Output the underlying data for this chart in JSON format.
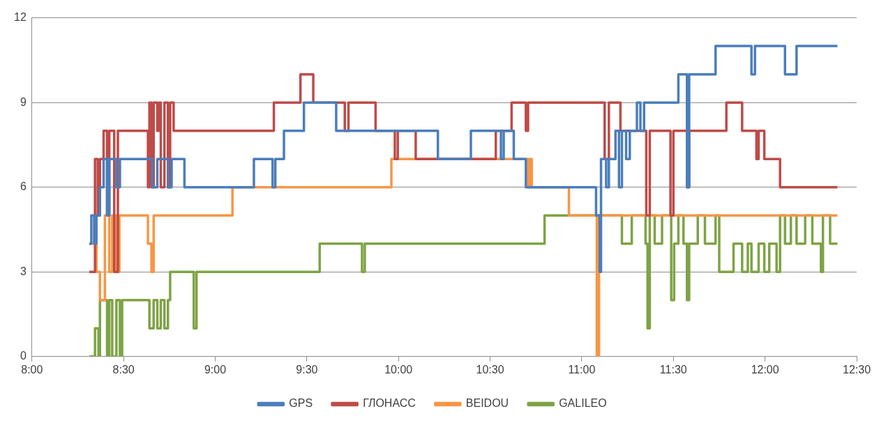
{
  "chart_data": {
    "type": "step",
    "xlim": [
      8,
      12.5
    ],
    "ylim": [
      0,
      12
    ],
    "yticks": [
      0,
      3,
      6,
      9,
      12
    ],
    "xticks": [
      {
        "value": 8,
        "label": "8:00"
      },
      {
        "value": 8.5,
        "label": "8:30"
      },
      {
        "value": 9,
        "label": "9:00"
      },
      {
        "value": 9.5,
        "label": "9:30"
      },
      {
        "value": 10,
        "label": "10:00"
      },
      {
        "value": 10.5,
        "label": "10:30"
      },
      {
        "value": 11,
        "label": "11:00"
      },
      {
        "value": 11.5,
        "label": "11:30"
      },
      {
        "value": 12,
        "label": "12:00"
      },
      {
        "value": 12.5,
        "label": "12:30"
      }
    ],
    "grid": "y",
    "legend": "bottom",
    "marker": "none",
    "line_style": "solid",
    "series": [
      {
        "name": "GPS",
        "color": "#4a7ebb",
        "x": [
          8.313,
          8.324,
          8.34,
          8.352,
          8.371,
          8.391,
          8.41,
          8.422,
          8.461,
          8.48,
          8.656,
          8.684,
          8.742,
          8.762,
          8.832,
          9.211,
          9.313,
          9.328,
          9.375,
          9.484,
          9.66,
          10.215,
          10.395,
          10.559,
          10.574,
          10.629,
          10.695,
          11.078,
          11.098,
          11.105,
          11.133,
          11.148,
          11.184,
          11.203,
          11.219,
          11.242,
          11.262,
          11.301,
          11.32,
          11.34,
          11.527,
          11.574,
          11.586,
          11.73,
          11.926,
          11.945,
          12.109,
          12.172,
          12.395
        ],
        "values": [
          4,
          5,
          4,
          5,
          6,
          7,
          5,
          7,
          6,
          7,
          6,
          7,
          6,
          7,
          6,
          7,
          6,
          7,
          8,
          9,
          8,
          7,
          8,
          7,
          8,
          7,
          6,
          5,
          3,
          7,
          6,
          7,
          8,
          6,
          8,
          7,
          8,
          9,
          8,
          9,
          10,
          6,
          10,
          11,
          10,
          11,
          10,
          11,
          11
        ]
      },
      {
        "name": "ГЛОНАСС",
        "color": "#be4b48",
        "x": [
          8.313,
          8.344,
          8.359,
          8.371,
          8.391,
          8.41,
          8.422,
          8.449,
          8.469,
          8.633,
          8.641,
          8.652,
          8.664,
          8.684,
          8.695,
          8.703,
          8.723,
          8.742,
          8.754,
          8.773,
          9.32,
          9.465,
          9.535,
          9.707,
          9.727,
          9.875,
          9.98,
          9.996,
          10.094,
          10.531,
          10.617,
          10.695,
          10.707,
          11.125,
          11.148,
          11.211,
          11.352,
          11.371,
          11.484,
          11.5,
          11.574,
          11.586,
          11.789,
          11.875,
          11.953,
          11.965,
          11.996,
          12.082,
          12.395
        ],
        "values": [
          3,
          7,
          5,
          7,
          8,
          5,
          8,
          3,
          8,
          6,
          9,
          6,
          9,
          8,
          9,
          6,
          9,
          6,
          9,
          8,
          9,
          10,
          9,
          8,
          9,
          8,
          7,
          8,
          7,
          8,
          9,
          8,
          9,
          7,
          9,
          8,
          5,
          8,
          5,
          8,
          6,
          8,
          9,
          8,
          7,
          8,
          7,
          6,
          6
        ]
      },
      {
        "name": "BEIDOU",
        "color": "#f79646",
        "x": [
          8.313,
          8.34,
          8.352,
          8.371,
          8.398,
          8.422,
          8.438,
          8.461,
          8.477,
          8.633,
          8.652,
          8.664,
          9.094,
          9.961,
          10.707,
          10.715,
          10.727,
          10.93,
          11.082,
          11.094,
          12.395
        ],
        "values": [
          4,
          5,
          3,
          2,
          5,
          3,
          5,
          3,
          5,
          4,
          3,
          5,
          6,
          7,
          6,
          7,
          6,
          5,
          0,
          5,
          5
        ]
      },
      {
        "name": "GALILEO",
        "color": "#7ea345",
        "x": [
          8.313,
          8.344,
          8.363,
          8.371,
          8.41,
          8.422,
          8.438,
          8.461,
          8.48,
          8.492,
          8.641,
          8.664,
          8.684,
          8.703,
          8.723,
          8.742,
          8.754,
          8.883,
          8.898,
          9.57,
          9.801,
          9.816,
          10.797,
          11.219,
          11.273,
          11.348,
          11.359,
          11.371,
          11.398,
          11.438,
          11.488,
          11.504,
          11.527,
          11.555,
          11.574,
          11.586,
          11.633,
          11.672,
          11.73,
          11.75,
          11.828,
          11.875,
          11.906,
          11.926,
          11.965,
          11.996,
          12.023,
          12.063,
          12.082,
          12.109,
          12.141,
          12.172,
          12.219,
          12.258,
          12.305,
          12.316,
          12.355,
          12.395
        ],
        "values": [
          0,
          1,
          0,
          2,
          0,
          2,
          0,
          2,
          0,
          2,
          1,
          2,
          1,
          2,
          1,
          2,
          3,
          1,
          3,
          4,
          3,
          4,
          5,
          4,
          5,
          4,
          1,
          5,
          4,
          5,
          2,
          4,
          5,
          4,
          2,
          4,
          5,
          4,
          5,
          3,
          4,
          3,
          4,
          3,
          4,
          3,
          4,
          3,
          5,
          4,
          5,
          4,
          5,
          4,
          3,
          5,
          4,
          4
        ]
      }
    ]
  }
}
